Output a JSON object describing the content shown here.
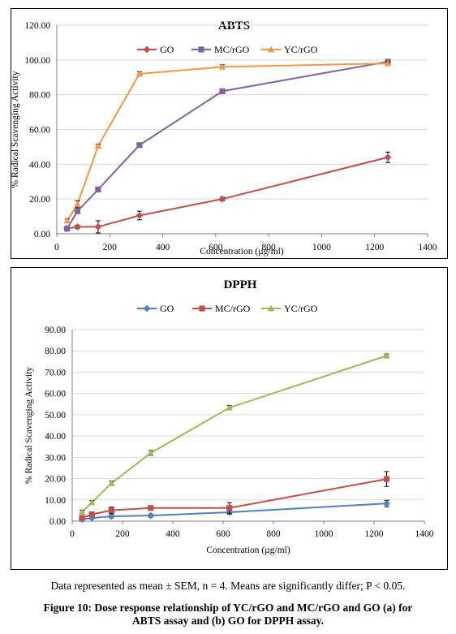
{
  "chart_data": [
    {
      "type": "line",
      "title": "ABTS",
      "xlabel": "Concentration (µg/ml)",
      "ylabel": "% Radical Scavenging Activity",
      "xlim": [
        0,
        1400
      ],
      "ylim": [
        0,
        120
      ],
      "xticks": [
        "0",
        "200",
        "400",
        "600",
        "800",
        "1000",
        "1200",
        "1400"
      ],
      "yticks": [
        "0.00",
        "20.00",
        "40.00",
        "60.00",
        "80.00",
        "100.00",
        "120.00"
      ],
      "grid": true,
      "legend_position": "top",
      "x": [
        39,
        78,
        156,
        312,
        625,
        1250
      ],
      "series": [
        {
          "name": "GO",
          "color": "#c0504d",
          "marker": "diamond",
          "values": [
            3,
            4,
            4,
            10.5,
            20,
            44
          ],
          "errors": [
            1,
            1,
            3.5,
            2.5,
            1,
            3
          ]
        },
        {
          "name": "MC/rGO",
          "color": "#8064a2",
          "marker": "square",
          "values": [
            3,
            13,
            25.5,
            51,
            82,
            99
          ],
          "errors": [
            0.8,
            1,
            1,
            1,
            1,
            1
          ]
        },
        {
          "name": "YC/rGO",
          "color": "#f79646",
          "marker": "triangle",
          "values": [
            7.5,
            17,
            50.5,
            92,
            96,
            98
          ],
          "errors": [
            1,
            2,
            1,
            1.2,
            1.2,
            1
          ]
        }
      ]
    },
    {
      "type": "line",
      "title": "DPPH",
      "xlabel": "Concentration (µg/ml)",
      "ylabel": "% Radical Scavenging Activity",
      "xlim": [
        0,
        1400
      ],
      "ylim": [
        0,
        90
      ],
      "xticks": [
        "0",
        "200",
        "400",
        "600",
        "800",
        "1000",
        "1200",
        "1400"
      ],
      "yticks": [
        "0.00",
        "10.00",
        "20.00",
        "30.00",
        "40.00",
        "50.00",
        "60.00",
        "70.00",
        "80.00",
        "90.00"
      ],
      "grid": true,
      "legend_position": "top",
      "x": [
        39,
        78,
        156,
        312,
        625,
        1250
      ],
      "series": [
        {
          "name": "GO",
          "color": "#4f81bd",
          "marker": "diamond",
          "values": [
            0.8,
            1.5,
            2.3,
            2.6,
            4.2,
            8.3
          ],
          "errors": [
            0.5,
            0.5,
            0.8,
            0.7,
            1,
            1.5
          ]
        },
        {
          "name": "MC/rGO",
          "color": "#c0504d",
          "marker": "square",
          "values": [
            1.5,
            3.2,
            5.1,
            6.2,
            6.2,
            19.8
          ],
          "errors": [
            0.8,
            1,
            1.5,
            1,
            2.5,
            3.5
          ]
        },
        {
          "name": "YC/rGO",
          "color": "#9bbb59",
          "marker": "triangle",
          "values": [
            4.3,
            8.8,
            17.8,
            32,
            53.3,
            77.7
          ],
          "errors": [
            0.8,
            0.8,
            1,
            1.2,
            1,
            0.8
          ]
        }
      ]
    }
  ],
  "footnote": "Data represented as mean ± SEM, n = 4. Means are significantly differ; P < 0.05.",
  "figure_caption_line1": "Figure 10: Dose response relationship of YC/rGO and MC/rGO and GO (a) for",
  "figure_caption_line2": "ABTS assay and (b) GO for DPPH assay."
}
